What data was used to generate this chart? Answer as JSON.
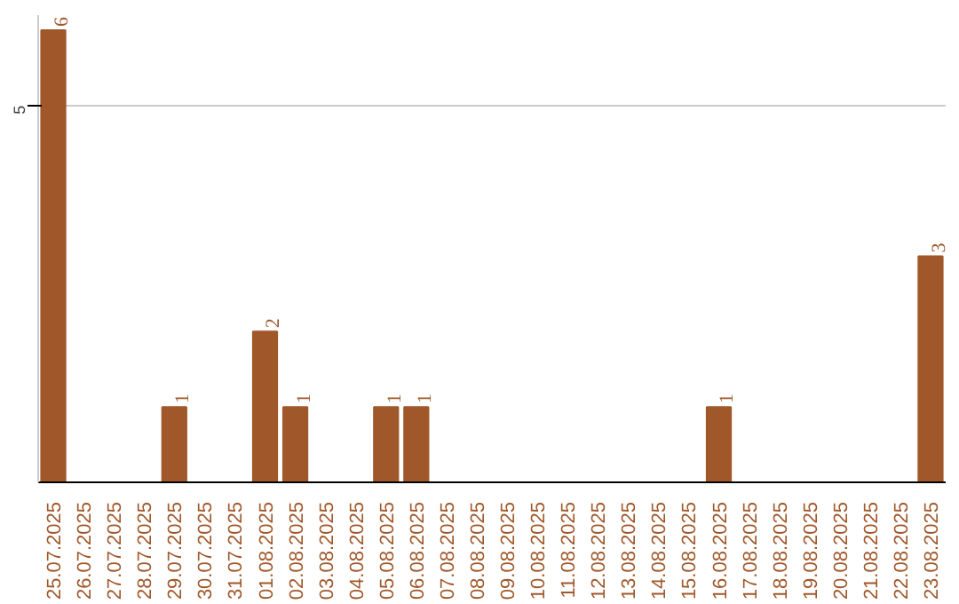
{
  "chart_data": {
    "type": "bar",
    "categories": [
      "25.07.2025",
      "26.07.2025",
      "27.07.2025",
      "28.07.2025",
      "29.07.2025",
      "30.07.2025",
      "31.07.2025",
      "01.08.2025",
      "02.08.2025",
      "03.08.2025",
      "04.08.2025",
      "05.08.2025",
      "06.08.2025",
      "07.08.2025",
      "08.08.2025",
      "09.08.2025",
      "10.08.2025",
      "11.08.2025",
      "12.08.2025",
      "13.08.2025",
      "14.08.2025",
      "15.08.2025",
      "16.08.2025",
      "17.08.2025",
      "18.08.2025",
      "19.08.2025",
      "20.08.2025",
      "21.08.2025",
      "22.08.2025",
      "23.08.2025"
    ],
    "values": [
      6,
      0,
      0,
      0,
      1,
      0,
      0,
      2,
      1,
      0,
      0,
      1,
      1,
      0,
      0,
      0,
      0,
      0,
      0,
      0,
      0,
      0,
      1,
      0,
      0,
      0,
      0,
      0,
      0,
      3
    ],
    "value_labels": [
      "6",
      null,
      null,
      null,
      "1",
      null,
      null,
      "2",
      "1",
      null,
      null,
      "1",
      "1",
      null,
      null,
      null,
      null,
      null,
      null,
      null,
      null,
      null,
      "1",
      null,
      null,
      null,
      null,
      null,
      null,
      "3"
    ],
    "color": "#a0582a",
    "ylim": [
      0,
      6.2
    ],
    "yticks": [
      5
    ],
    "grid": "y"
  }
}
